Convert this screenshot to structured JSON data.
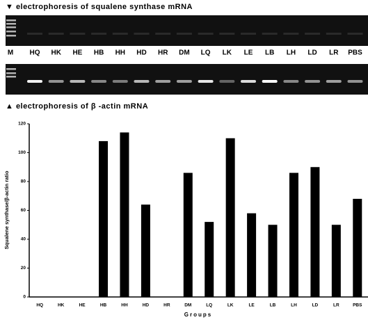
{
  "header": {
    "top": "▼  electrophoresis of squalene synthase mRNA",
    "bottom": "▲  electrophoresis of β -actin mRNA"
  },
  "gel": {
    "lanes": [
      "M",
      "HQ",
      "HK",
      "HE",
      "HB",
      "HH",
      "HD",
      "HR",
      "DM",
      "LQ",
      "LK",
      "LE",
      "LB",
      "LH",
      "LD",
      "LR",
      "PBS"
    ]
  },
  "chart_data": {
    "type": "bar",
    "x_label": "Groups",
    "y_label": "Squalene synthase/β-actin ratio",
    "categories": [
      "HQ",
      "HK",
      "HE",
      "HB",
      "HH",
      "HD",
      "HR",
      "DM",
      "LQ",
      "LK",
      "LE",
      "LB",
      "LH",
      "LD",
      "LR",
      "PBS"
    ],
    "values": [
      0,
      0,
      0,
      108,
      114,
      64,
      0,
      86,
      52,
      110,
      58,
      50,
      86,
      90,
      50,
      68
    ],
    "color": "#000000",
    "ylim": [
      0,
      120
    ],
    "yticks": [
      0,
      20,
      40,
      60,
      80,
      100,
      120
    ],
    "grid": false
  }
}
